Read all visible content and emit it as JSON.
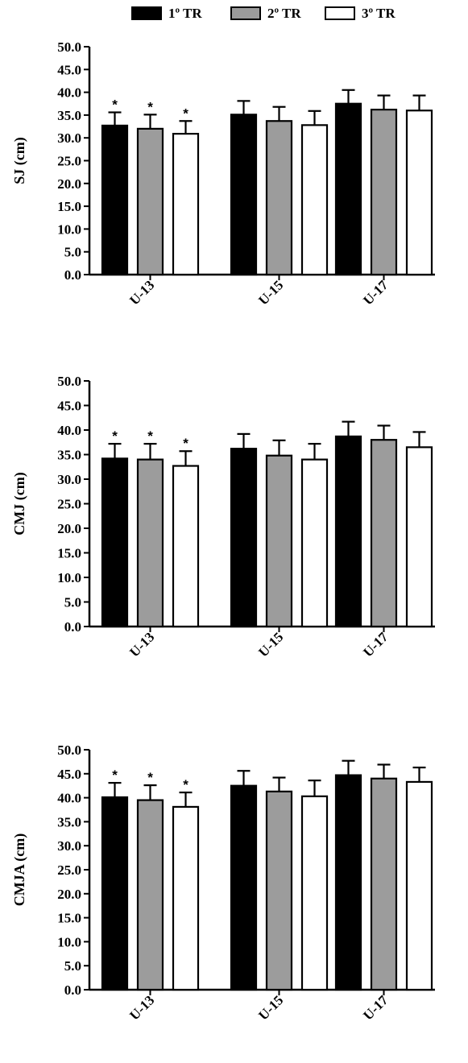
{
  "legend": [
    {
      "label": "1º TR",
      "color": "#000000"
    },
    {
      "label": "2º TR",
      "color": "#9c9c9c"
    },
    {
      "label": "3º TR",
      "color": "#ffffff"
    }
  ],
  "chart_data": [
    {
      "type": "bar",
      "ylabel": "SJ (cm)",
      "ylim": [
        0,
        50
      ],
      "yticks": [
        "0.0",
        "5.0",
        "10.0",
        "15.0",
        "20.0",
        "25.0",
        "30.0",
        "35.0",
        "40.0",
        "45.0",
        "50.0"
      ],
      "categories": [
        "U-13",
        "U-15",
        "U-17"
      ],
      "series": [
        {
          "name": "1º TR",
          "values": [
            32.7,
            35.1,
            37.5
          ],
          "errors": [
            2.9,
            3.0,
            3.0
          ],
          "significant": [
            true,
            false,
            false
          ]
        },
        {
          "name": "2º TR",
          "values": [
            32.0,
            33.7,
            36.2
          ],
          "errors": [
            3.1,
            3.1,
            3.1
          ],
          "significant": [
            true,
            false,
            false
          ]
        },
        {
          "name": "3º TR",
          "values": [
            30.9,
            32.8,
            36.0
          ],
          "errors": [
            2.8,
            3.1,
            3.3
          ],
          "significant": [
            true,
            false,
            false
          ]
        }
      ],
      "annotation": "*"
    },
    {
      "type": "bar",
      "ylabel": "CMJ (cm)",
      "ylim": [
        0,
        50
      ],
      "yticks": [
        "0.0",
        "5.0",
        "10.0",
        "15.0",
        "20.0",
        "25.0",
        "30.0",
        "35.0",
        "40.0",
        "45.0",
        "50.0"
      ],
      "categories": [
        "U-13",
        "U-15",
        "U-17"
      ],
      "series": [
        {
          "name": "1º TR",
          "values": [
            34.2,
            36.2,
            38.7
          ],
          "errors": [
            3.0,
            3.0,
            3.0
          ],
          "significant": [
            true,
            false,
            false
          ]
        },
        {
          "name": "2º TR",
          "values": [
            34.0,
            34.8,
            38.0
          ],
          "errors": [
            3.2,
            3.1,
            2.9
          ],
          "significant": [
            true,
            false,
            false
          ]
        },
        {
          "name": "3º TR",
          "values": [
            32.7,
            34.0,
            36.5
          ],
          "errors": [
            3.0,
            3.2,
            3.1
          ],
          "significant": [
            true,
            false,
            false
          ]
        }
      ],
      "annotation": "*"
    },
    {
      "type": "bar",
      "ylabel": "CMJA (cm)",
      "ylim": [
        0,
        50
      ],
      "yticks": [
        "0.0",
        "5.0",
        "10.0",
        "15.0",
        "20.0",
        "25.0",
        "30.0",
        "35.0",
        "40.0",
        "45.0",
        "50.0"
      ],
      "categories": [
        "U-13",
        "U-15",
        "U-17"
      ],
      "series": [
        {
          "name": "1º TR",
          "values": [
            40.1,
            42.5,
            44.7
          ],
          "errors": [
            3.0,
            3.1,
            3.0
          ],
          "significant": [
            true,
            false,
            false
          ]
        },
        {
          "name": "2º TR",
          "values": [
            39.5,
            41.3,
            44.0
          ],
          "errors": [
            3.1,
            2.9,
            2.9
          ],
          "significant": [
            true,
            false,
            false
          ]
        },
        {
          "name": "3º TR",
          "values": [
            38.1,
            40.3,
            43.3
          ],
          "errors": [
            3.0,
            3.3,
            3.0
          ],
          "significant": [
            true,
            false,
            false
          ]
        }
      ],
      "annotation": "*"
    }
  ]
}
